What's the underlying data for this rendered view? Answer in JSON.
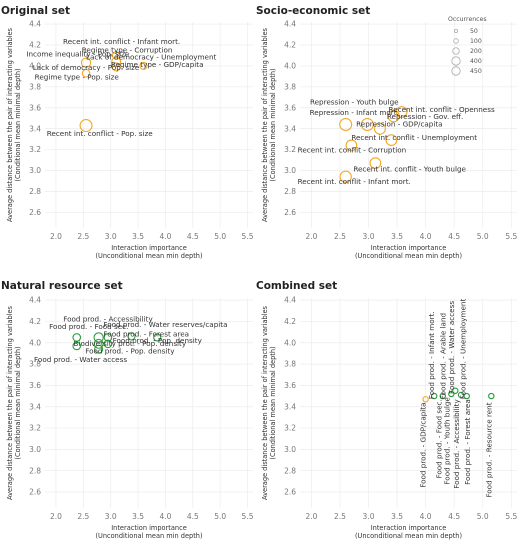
{
  "chart_data": [
    {
      "type": "scatter",
      "title": "Original set",
      "xlabel": "Interaction importance (Unconditional mean min depth)",
      "ylabel": "Average distance between the pair of interacting variables (Conditional mean minimal depth)",
      "xlim": [
        1.8,
        5.6
      ],
      "ylim": [
        2.45,
        4.42
      ],
      "xticks": [
        "2.0",
        "2.5",
        "3.0",
        "3.5",
        "4.0",
        "4.5",
        "5.0",
        "5.5"
      ],
      "yticks": [
        "2.6",
        "2.8",
        "3.0",
        "3.2",
        "3.4",
        "3.6",
        "3.8",
        "4.0",
        "4.2",
        "4.4"
      ],
      "color": "#f5a623",
      "points": [
        {
          "x": 2.55,
          "y": 4.03,
          "size": 120
        },
        {
          "x": 2.55,
          "y": 3.93,
          "size": 80
        },
        {
          "x": 2.55,
          "y": 3.43,
          "size": 200
        },
        {
          "x": 3.1,
          "y": 4.1,
          "size": 80
        },
        {
          "x": 3.1,
          "y": 4.04,
          "size": 110
        },
        {
          "x": 3.1,
          "y": 3.99,
          "size": 90
        },
        {
          "x": 3.6,
          "y": 4.0,
          "size": 70
        }
      ],
      "labels": [
        {
          "text": "Recent int. conflict - Infant mort.",
          "x": 3.2,
          "y": 4.21
        },
        {
          "text": "Regime type - Corruption",
          "x": 3.3,
          "y": 4.13
        },
        {
          "text": "Income inequality - Pop. size",
          "x": 2.4,
          "y": 4.09
        },
        {
          "text": "Lack of democracy - Unemployment",
          "x": 3.74,
          "y": 4.06
        },
        {
          "text": "Regime type - GDP/capita",
          "x": 3.85,
          "y": 3.99
        },
        {
          "text": "Lack of democracy - Pop. size",
          "x": 2.55,
          "y": 3.96
        },
        {
          "text": "Regime type - Pop. size",
          "x": 2.38,
          "y": 3.87
        },
        {
          "text": "Recent int. conflict - Pop. size",
          "x": 2.8,
          "y": 3.33
        }
      ]
    },
    {
      "type": "scatter",
      "title": "Socio-economic set",
      "xlabel": "Interaction importance (Unconditional mean min depth)",
      "ylabel": "Average distance between the pair of interacting variables (Conditional mean minimal depth)",
      "xlim": [
        1.8,
        5.6
      ],
      "ylim": [
        2.45,
        4.42
      ],
      "xticks": [
        "2.0",
        "2.5",
        "3.0",
        "3.5",
        "4.0",
        "4.5",
        "5.0",
        "5.5"
      ],
      "yticks": [
        "2.6",
        "2.8",
        "3.0",
        "3.2",
        "3.4",
        "3.6",
        "3.8",
        "4.0",
        "4.2",
        "4.4"
      ],
      "color": "#f5a623",
      "points": [
        {
          "x": 2.6,
          "y": 3.44,
          "size": 200
        },
        {
          "x": 2.6,
          "y": 2.94,
          "size": 180
        },
        {
          "x": 2.7,
          "y": 3.24,
          "size": 160
        },
        {
          "x": 2.98,
          "y": 3.44,
          "size": 200
        },
        {
          "x": 3.12,
          "y": 3.07,
          "size": 160
        },
        {
          "x": 3.2,
          "y": 3.4,
          "size": 170
        },
        {
          "x": 3.44,
          "y": 3.52,
          "size": 180
        },
        {
          "x": 3.58,
          "y": 3.56,
          "size": 160
        },
        {
          "x": 3.4,
          "y": 3.29,
          "size": 160
        }
      ],
      "labels": [
        {
          "text": "Repression - Youth bulge",
          "x": 2.75,
          "y": 3.63
        },
        {
          "text": "Recent int. conflit - Openness",
          "x": 4.28,
          "y": 3.56
        },
        {
          "text": "Repression - Infant mort.",
          "x": 2.75,
          "y": 3.53
        },
        {
          "text": "Repression - Gov. eff.",
          "x": 3.99,
          "y": 3.49
        },
        {
          "text": "Repression - GDP/capita",
          "x": 3.54,
          "y": 3.42
        },
        {
          "text": "Recent int. conflit - Unemployment",
          "x": 3.8,
          "y": 3.29
        },
        {
          "text": "Recent int. conflit - Corruption",
          "x": 2.71,
          "y": 3.17
        },
        {
          "text": "Recent int. conflit - Youth bulge",
          "x": 3.72,
          "y": 2.99
        },
        {
          "text": "Recent int. conflit - Infant mort.",
          "x": 2.75,
          "y": 2.87
        }
      ],
      "legend": {
        "title": "Occurrences",
        "placement": "top-right",
        "entries": [
          {
            "label": "50",
            "size": 50
          },
          {
            "label": "100",
            "size": 100
          },
          {
            "label": "200",
            "size": 200
          },
          {
            "label": "400",
            "size": 400
          },
          {
            "label": "450",
            "size": 450
          }
        ]
      }
    },
    {
      "type": "scatter",
      "title": "Natural resource set",
      "xlabel": "Interaction importance (Unconditional mean min depth)",
      "ylabel": "Average distance between the pair of interacting variables (Conditional mean minimal depth)",
      "xlim": [
        1.8,
        5.6
      ],
      "ylim": [
        2.45,
        4.42
      ],
      "xticks": [
        "2.0",
        "2.5",
        "3.0",
        "3.5",
        "4.0",
        "4.5",
        "5.0",
        "5.5"
      ],
      "yticks": [
        "2.6",
        "2.8",
        "3.0",
        "3.2",
        "3.4",
        "3.6",
        "3.8",
        "4.0",
        "4.2",
        "4.4"
      ],
      "color": "#2a9d3a",
      "points": [
        {
          "x": 2.38,
          "y": 4.05,
          "size": 80
        },
        {
          "x": 2.38,
          "y": 3.97,
          "size": 80
        },
        {
          "x": 2.78,
          "y": 4.05,
          "size": 120
        },
        {
          "x": 2.78,
          "y": 3.99,
          "size": 110
        },
        {
          "x": 2.78,
          "y": 3.94,
          "size": 90
        },
        {
          "x": 2.95,
          "y": 4.05,
          "size": 80
        },
        {
          "x": 2.95,
          "y": 3.99,
          "size": 80
        },
        {
          "x": 3.38,
          "y": 4.06,
          "size": 70
        },
        {
          "x": 3.85,
          "y": 4.05,
          "size": 70
        }
      ],
      "labels": [
        {
          "text": "Food prod. - Accessibility",
          "x": 2.95,
          "y": 4.2
        },
        {
          "text": "Food prod. - Water reserves/capita",
          "x": 4.0,
          "y": 4.15
        },
        {
          "text": "Food prod. - Food sec.",
          "x": 2.6,
          "y": 4.13
        },
        {
          "text": "Food prod. - Forest area",
          "x": 3.65,
          "y": 4.06
        },
        {
          "text": "Food prod. - Pop. density",
          "x": 3.85,
          "y": 4.0
        },
        {
          "text": "Biodiversity prot. - Pop. density",
          "x": 3.35,
          "y": 3.97
        },
        {
          "text": "Food prod. - Pop. density",
          "x": 3.35,
          "y": 3.9
        },
        {
          "text": "Food prod. - Water access",
          "x": 2.45,
          "y": 3.82
        }
      ]
    },
    {
      "type": "scatter",
      "title": "Combined set",
      "xlabel": "Interaction importance (Unconditional mean min depth)",
      "ylabel": "Average distance between the pair of interacting variables (Conditional mean minimal depth)",
      "xlim": [
        1.8,
        5.6
      ],
      "ylim": [
        2.45,
        4.42
      ],
      "xticks": [
        "2.0",
        "2.5",
        "3.0",
        "3.5",
        "4.0",
        "4.5",
        "5.0",
        "5.5"
      ],
      "yticks": [
        "2.6",
        "2.8",
        "3.0",
        "3.2",
        "3.4",
        "3.6",
        "3.8",
        "4.0",
        "4.2",
        "4.4"
      ],
      "points": [
        {
          "x": 4.0,
          "y": 3.47,
          "size": 40,
          "color": "#f5a623"
        },
        {
          "x": 4.15,
          "y": 3.5,
          "size": 40,
          "color": "#2a9d3a"
        },
        {
          "x": 4.3,
          "y": 3.5,
          "size": 40,
          "color": "#2a9d3a"
        },
        {
          "x": 4.45,
          "y": 3.52,
          "size": 40,
          "color": "#2a9d3a"
        },
        {
          "x": 4.52,
          "y": 3.55,
          "size": 40,
          "color": "#2a9d3a"
        },
        {
          "x": 4.62,
          "y": 3.51,
          "size": 40,
          "color": "#2a9d3a"
        },
        {
          "x": 4.72,
          "y": 3.5,
          "size": 40,
          "color": "#2a9d3a"
        },
        {
          "x": 5.15,
          "y": 3.5,
          "size": 40,
          "color": "#2a9d3a"
        }
      ],
      "labels": [
        {
          "text": "Food prod. - GDP/capita",
          "x": 4.0,
          "y": 3.44,
          "anchor": "end",
          "rotate": -90
        },
        {
          "text": "Food prod. - Infant mort.",
          "x": 4.15,
          "y": 3.47,
          "anchor": "start",
          "rotate": -90
        },
        {
          "text": "Food prod. - Food sec.",
          "x": 4.28,
          "y": 3.47,
          "anchor": "end",
          "rotate": -90
        },
        {
          "text": "Food prod. - Arable land",
          "x": 4.35,
          "y": 3.47,
          "anchor": "start",
          "rotate": -90
        },
        {
          "text": "Food prod. - Youth bulge",
          "x": 4.42,
          "y": 3.49,
          "anchor": "end",
          "rotate": -90
        },
        {
          "text": "Food prod. - Water access",
          "x": 4.5,
          "y": 3.52,
          "anchor": "start",
          "rotate": -90
        },
        {
          "text": "Food prod. - Accessibility",
          "x": 4.58,
          "y": 3.47,
          "anchor": "end",
          "rotate": -90
        },
        {
          "text": "Food prod. - Unemployment",
          "x": 4.7,
          "y": 3.47,
          "anchor": "start",
          "rotate": -90
        },
        {
          "text": "Food prod. - Forest area",
          "x": 4.78,
          "y": 3.47,
          "anchor": "end",
          "rotate": -90
        },
        {
          "text": "Food prod. - Resource rent",
          "x": 5.15,
          "y": 3.44,
          "anchor": "end",
          "rotate": -90
        }
      ]
    }
  ]
}
